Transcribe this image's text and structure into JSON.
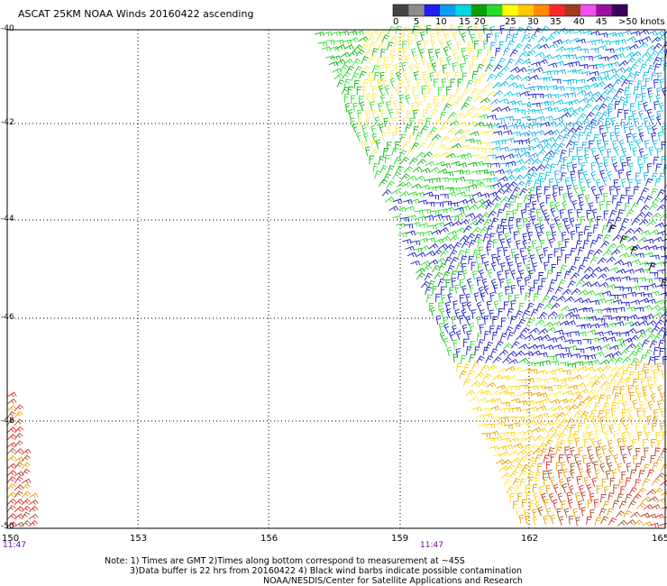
{
  "title": "ASCAT 25KM NOAA Winds 20160422 ascending",
  "colorbar": {
    "colors": [
      "#444444",
      "#8c8c8c",
      "#1e1ef0",
      "#0c9cf0",
      "#00d7e0",
      "#0aa00a",
      "#28dc28",
      "#ffff00",
      "#ffc800",
      "#ff8c00",
      "#ff2828",
      "#a03c1e",
      "#f050f0",
      "#9b0fa0",
      "#3c005a"
    ],
    "labels": [
      "0",
      "5",
      "10",
      "15",
      "20",
      "25",
      "30",
      "35",
      "40",
      "45",
      ">50 knots"
    ]
  },
  "map": {
    "x_ticks": [
      "150",
      "153",
      "156",
      "159",
      "162",
      "165"
    ],
    "y_ticks": [
      "-40",
      "-42",
      "-44",
      "-46",
      "-48",
      "-50"
    ],
    "time_labels": [
      "11:47",
      "11:47"
    ]
  },
  "notes": [
    "Note: 1) Times are GMT 2)Times along bottom correspond to measurement at ~45S",
    "3)Data buffer is 22 hrs from 20160422 4) Black wind barbs indicate possible contamination",
    "NOAA/NESDIS/Center for Satellite Applications and Research"
  ],
  "legend": {
    "barb_colors": [
      "#1c1cc8",
      "#0cb40c",
      "#2fdc2f",
      "#ffe94a",
      "#ffd000",
      "#e8a000",
      "#d82828",
      "#a05028",
      "#00c8e0",
      "#1aa0f0",
      "#000000"
    ]
  }
}
